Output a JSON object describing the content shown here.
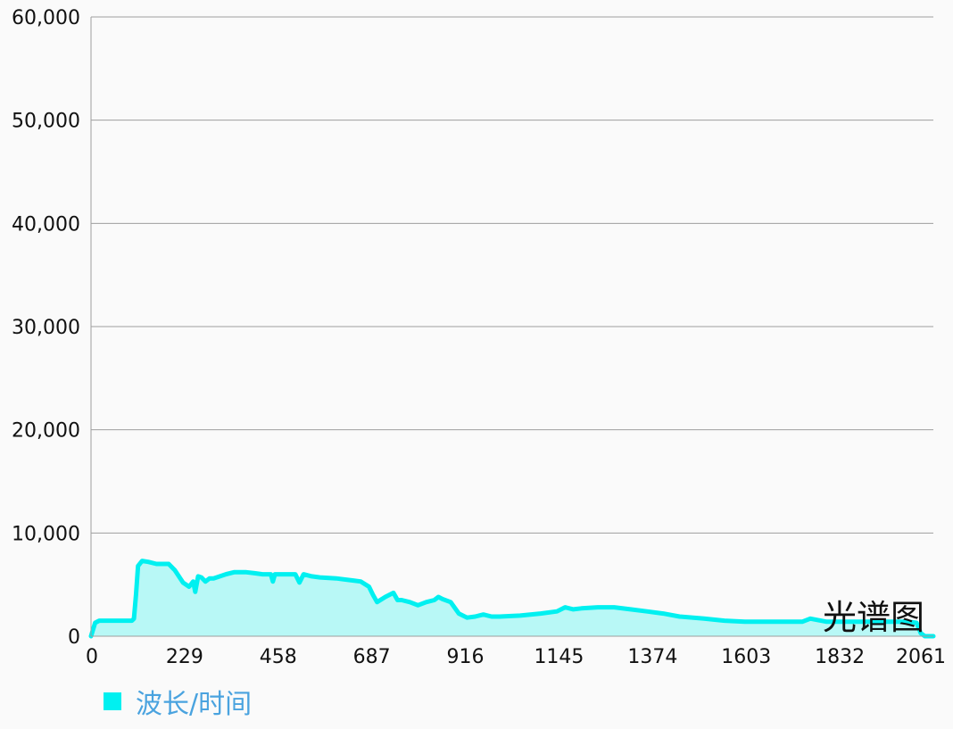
{
  "chart_data": {
    "type": "area",
    "description": "光谱图",
    "ylim": [
      0,
      60000
    ],
    "xlim": [
      0,
      2061
    ],
    "yticks": [
      0,
      10000,
      20000,
      30000,
      40000,
      50000,
      60000
    ],
    "ytick_labels": [
      "0",
      "10,000",
      "20,000",
      "30,000",
      "40,000",
      "50,000",
      "60,000"
    ],
    "xticks": [
      0,
      229,
      458,
      687,
      916,
      1145,
      1374,
      1603,
      1832,
      2061
    ],
    "xtick_labels": [
      "0",
      "229",
      "458",
      "687",
      "916",
      "1145",
      "1374",
      "1603",
      "1832",
      "2061"
    ],
    "grid": "horizontal",
    "legend": "bottom-left",
    "colors": {
      "line": "#00f0f0",
      "fill": "#b8f8f6",
      "grid": "#9e9e9e",
      "axis": "#9e9e9e"
    },
    "series": [
      {
        "name": "波长/时间",
        "x": [
          0,
          10,
          20,
          60,
          100,
          105,
          110,
          115,
          125,
          140,
          160,
          190,
          205,
          225,
          240,
          250,
          255,
          262,
          270,
          280,
          290,
          300,
          330,
          350,
          380,
          400,
          420,
          440,
          445,
          450,
          460,
          500,
          510,
          520,
          540,
          560,
          600,
          640,
          660,
          680,
          690,
          700,
          720,
          740,
          750,
          760,
          780,
          800,
          820,
          840,
          850,
          860,
          880,
          900,
          920,
          940,
          960,
          980,
          1000,
          1050,
          1100,
          1140,
          1160,
          1180,
          1200,
          1240,
          1280,
          1320,
          1360,
          1400,
          1440,
          1500,
          1550,
          1600,
          1650,
          1700,
          1740,
          1760,
          1800,
          1850,
          1900,
          1950,
          2000,
          2010,
          2020,
          2030,
          2040,
          2050,
          2061
        ],
        "values": [
          0,
          1300,
          1500,
          1500,
          1500,
          1700,
          4000,
          6800,
          7300,
          7200,
          7000,
          7000,
          6400,
          5200,
          4800,
          5300,
          4300,
          5800,
          5700,
          5300,
          5600,
          5600,
          6000,
          6200,
          6200,
          6100,
          6000,
          6000,
          5300,
          6000,
          6000,
          6000,
          5200,
          6000,
          5800,
          5700,
          5600,
          5400,
          5300,
          4800,
          4000,
          3300,
          3800,
          4200,
          3500,
          3500,
          3300,
          3000,
          3300,
          3500,
          3800,
          3600,
          3300,
          2200,
          1800,
          1900,
          2100,
          1900,
          1900,
          2000,
          2200,
          2400,
          2800,
          2600,
          2700,
          2800,
          2800,
          2600,
          2400,
          2200,
          1900,
          1700,
          1500,
          1400,
          1400,
          1400,
          1400,
          1700,
          1400,
          1400,
          1400,
          1400,
          1400,
          1350,
          1300,
          300,
          0,
          0,
          0
        ]
      }
    ]
  }
}
